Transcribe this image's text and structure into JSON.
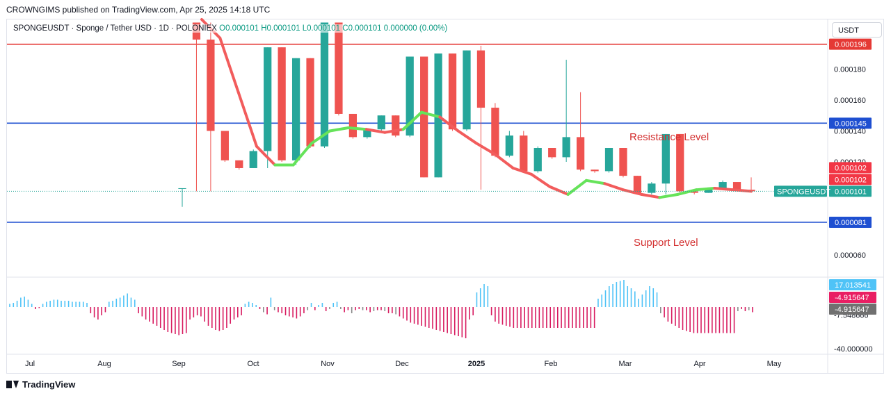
{
  "header": {
    "publisher": "CROWNGIMS published on TradingView.com, Apr 25, 2025 14:18 UTC"
  },
  "legend": {
    "symbol": "SPONGEUSDT · Sponge / Tether USD · 1D · POLONIEX",
    "ohlc": "O0.000101  H0.000101  L0.000101  C0.000101  0.000000 (0.00%)"
  },
  "currency": "USDT",
  "footer": {
    "brand": "TradingView"
  },
  "chart_data": {
    "type": "line",
    "colors": {
      "up": "#26a69a",
      "down": "#ef5350",
      "ma_up": "#66e35a",
      "ma_down": "#f25c5c",
      "resistance_top": "#e53935",
      "level": "#1e4fd1",
      "osc_up": "#4fc3f7",
      "osc_down": "#d81b60",
      "osc_neutral": "#8a8a8a"
    },
    "price_axis": {
      "ticks": [
        "0.000180",
        "0.000160",
        "0.000140",
        "0.000120",
        "0.000060"
      ],
      "tick_values": [
        0.00018,
        0.00016,
        0.00014,
        0.00012,
        6e-05
      ],
      "range": [
        4.6e-05,
        0.000212
      ]
    },
    "time_axis": [
      "Jul",
      "Aug",
      "Sep",
      "Oct",
      "Nov",
      "Dec",
      "2025",
      "Feb",
      "Mar",
      "Apr",
      "May"
    ],
    "levels": [
      {
        "value": 0.000196,
        "label": "0.000196",
        "color": "#e53935"
      },
      {
        "value": 0.000145,
        "label": "0.000145",
        "color": "#1e4fd1"
      },
      {
        "value": 8.1e-05,
        "label": "0.000081",
        "color": "#1e4fd1"
      }
    ],
    "annotations": {
      "resistance": "Resistance Level",
      "support": "Support Level"
    },
    "price_tags": [
      {
        "label": "0.000102",
        "color": "#f23645"
      },
      {
        "label": "0.000102",
        "color": "#f23645"
      },
      {
        "label": "0.000101",
        "color": "#26a69a",
        "symbol": "SPONGEUSDT"
      }
    ],
    "candles": [
      {
        "o": 0.000103,
        "h": 0.000103,
        "l": 9.1e-05,
        "c": 0.000103
      },
      {
        "o": 0.00021,
        "h": 0.00021,
        "l": 0.000101,
        "c": 0.000199
      },
      {
        "o": 0.000199,
        "h": 0.00021,
        "l": 0.000101,
        "c": 0.00014
      },
      {
        "o": 0.00014,
        "h": 0.00014,
        "l": 0.00012,
        "c": 0.000121
      },
      {
        "o": 0.000121,
        "h": 0.000121,
        "l": 0.000115,
        "c": 0.000116
      },
      {
        "o": 0.000116,
        "h": 0.000128,
        "l": 0.000116,
        "c": 0.000127
      },
      {
        "o": 0.000127,
        "h": 0.000194,
        "l": 0.000116,
        "c": 0.000194
      },
      {
        "o": 0.000194,
        "h": 0.000194,
        "l": 0.00012,
        "c": 0.000121
      },
      {
        "o": 0.000121,
        "h": 0.000187,
        "l": 0.000118,
        "c": 0.000187
      },
      {
        "o": 0.000187,
        "h": 0.000187,
        "l": 0.000129,
        "c": 0.00013
      },
      {
        "o": 0.00013,
        "h": 0.00021,
        "l": 0.000129,
        "c": 0.00021
      },
      {
        "o": 0.00021,
        "h": 0.00021,
        "l": 0.00015,
        "c": 0.000151
      },
      {
        "o": 0.000151,
        "h": 0.000151,
        "l": 0.000135,
        "c": 0.000136
      },
      {
        "o": 0.000136,
        "h": 0.000141,
        "l": 0.000135,
        "c": 0.000141
      },
      {
        "o": 0.000141,
        "h": 0.00015,
        "l": 0.000139,
        "c": 0.00015
      },
      {
        "o": 0.00015,
        "h": 0.00015,
        "l": 0.000136,
        "c": 0.000137
      },
      {
        "o": 0.000137,
        "h": 0.000188,
        "l": 0.000136,
        "c": 0.000188
      },
      {
        "o": 0.000188,
        "h": 0.000188,
        "l": 0.00011,
        "c": 0.00011
      },
      {
        "o": 0.00011,
        "h": 0.00019,
        "l": 0.00011,
        "c": 0.00019
      },
      {
        "o": 0.00019,
        "h": 0.00019,
        "l": 0.00014,
        "c": 0.000141
      },
      {
        "o": 0.000141,
        "h": 0.000192,
        "l": 0.00014,
        "c": 0.000192
      },
      {
        "o": 0.000192,
        "h": 0.000195,
        "l": 0.000102,
        "c": 0.000155
      },
      {
        "o": 0.000155,
        "h": 0.000158,
        "l": 0.000123,
        "c": 0.000124
      },
      {
        "o": 0.000124,
        "h": 0.00014,
        "l": 0.000123,
        "c": 0.000137
      },
      {
        "o": 0.000137,
        "h": 0.00014,
        "l": 0.000113,
        "c": 0.000114
      },
      {
        "o": 0.000114,
        "h": 0.00013,
        "l": 0.000113,
        "c": 0.000129
      },
      {
        "o": 0.000129,
        "h": 0.000129,
        "l": 0.000122,
        "c": 0.000123
      },
      {
        "o": 0.000123,
        "h": 0.000186,
        "l": 0.00012,
        "c": 0.000136
      },
      {
        "o": 0.000136,
        "h": 0.000165,
        "l": 0.000114,
        "c": 0.000115
      },
      {
        "o": 0.000115,
        "h": 0.000115,
        "l": 0.000113,
        "c": 0.000114
      },
      {
        "o": 0.000114,
        "h": 0.000129,
        "l": 0.000113,
        "c": 0.000129
      },
      {
        "o": 0.000129,
        "h": 0.000129,
        "l": 0.00011,
        "c": 0.000111
      },
      {
        "o": 0.000111,
        "h": 0.000111,
        "l": 9.9e-05,
        "c": 0.0001
      },
      {
        "o": 0.0001,
        "h": 0.000107,
        "l": 9.9e-05,
        "c": 0.000106
      },
      {
        "o": 0.000106,
        "h": 0.000138,
        "l": 9.9e-05,
        "c": 0.000138
      },
      {
        "o": 0.000138,
        "h": 0.000138,
        "l": 0.0001,
        "c": 0.000101
      },
      {
        "o": 0.000101,
        "h": 0.000101,
        "l": 9.9e-05,
        "c": 0.0001
      },
      {
        "o": 0.0001,
        "h": 0.000103,
        "l": 0.0001,
        "c": 0.000103
      },
      {
        "o": 0.000103,
        "h": 0.000108,
        "l": 0.000102,
        "c": 0.000107
      },
      {
        "o": 0.000107,
        "h": 0.000107,
        "l": 0.000101,
        "c": 0.000102
      },
      {
        "o": 0.000102,
        "h": 0.00011,
        "l": 0.000101,
        "c": 0.000101
      }
    ],
    "ma": [
      {
        "v": 0.000222,
        "t": "down"
      },
      {
        "v": 0.0002,
        "t": "down"
      },
      {
        "v": 0.000165,
        "t": "down"
      },
      {
        "v": 0.00013,
        "t": "down"
      },
      {
        "v": 0.000118,
        "t": "up"
      },
      {
        "v": 0.000118,
        "t": "up"
      },
      {
        "v": 0.000132,
        "t": "up"
      },
      {
        "v": 0.00014,
        "t": "up"
      },
      {
        "v": 0.000142,
        "t": "up"
      },
      {
        "v": 0.000141,
        "t": "down"
      },
      {
        "v": 0.000139,
        "t": "down"
      },
      {
        "v": 0.000141,
        "t": "up"
      },
      {
        "v": 0.000152,
        "t": "up"
      },
      {
        "v": 0.000149,
        "t": "down"
      },
      {
        "v": 0.00014,
        "t": "down"
      },
      {
        "v": 0.000132,
        "t": "down"
      },
      {
        "v": 0.000125,
        "t": "down"
      },
      {
        "v": 0.000116,
        "t": "down"
      },
      {
        "v": 0.000112,
        "t": "down"
      },
      {
        "v": 0.000104,
        "t": "down"
      },
      {
        "v": 9.9e-05,
        "t": "up"
      },
      {
        "v": 0.000108,
        "t": "up"
      },
      {
        "v": 0.000106,
        "t": "down"
      },
      {
        "v": 0.000102,
        "t": "down"
      },
      {
        "v": 9.9e-05,
        "t": "down"
      },
      {
        "v": 9.7e-05,
        "t": "up"
      },
      {
        "v": 9.9e-05,
        "t": "up"
      },
      {
        "v": 0.000102,
        "t": "up"
      },
      {
        "v": 0.000103,
        "t": "down"
      },
      {
        "v": 0.000102,
        "t": "down"
      },
      {
        "v": 0.000101,
        "t": "down"
      }
    ],
    "oscillator": {
      "ticks": [
        "-7.548666",
        "-40.000000"
      ],
      "tick_values": [
        -7.548666,
        -40.0
      ],
      "range": [
        -44,
        28
      ],
      "value_tags": [
        {
          "label": "17.013541",
          "color": "#4fc3f7"
        },
        {
          "label": "-4.915647",
          "color": "#e91e63"
        },
        {
          "label": "-4.915647",
          "color": "#707070"
        }
      ],
      "values": [
        3,
        4,
        6,
        9,
        10,
        7,
        3,
        -2,
        -1,
        3,
        5,
        6,
        7,
        7,
        6,
        6,
        6,
        5,
        5,
        5,
        5,
        4,
        -6,
        -10,
        -12,
        -8,
        -5,
        5,
        6,
        8,
        9,
        11,
        13,
        9,
        7,
        -6,
        -9,
        -12,
        -14,
        -16,
        -18,
        -20,
        -22,
        -24,
        -25,
        -26,
        -27,
        -26,
        -25,
        -12,
        -10,
        -8,
        -9,
        -14,
        -18,
        -20,
        -22,
        -23,
        -22,
        -20,
        -16,
        -12,
        -10,
        -8,
        3,
        5,
        4,
        2,
        -2,
        -5,
        -7,
        9,
        -3,
        -5,
        -6,
        -8,
        -9,
        -10,
        -11,
        -9,
        -6,
        -3,
        4,
        -3,
        2,
        4,
        -4,
        -2,
        4,
        5,
        -2,
        -5,
        -3,
        -6,
        -3,
        -2,
        -3,
        -3,
        -5,
        -4,
        -3,
        -3,
        -4,
        -6,
        -6,
        -7,
        -9,
        -11,
        -13,
        -15,
        -16,
        -17,
        -18,
        -19,
        -20,
        -21,
        -22,
        -23,
        -24,
        -25,
        -26,
        -27,
        -28,
        -29,
        -30,
        -12,
        -8,
        14,
        18,
        22,
        20,
        -8,
        -14,
        -16,
        -17,
        -18,
        -19,
        -20,
        -20,
        -20,
        -20,
        -20,
        -20,
        -20,
        -20,
        -20,
        -20,
        -20,
        -20,
        -20,
        -20,
        -20,
        -20,
        -20,
        -20,
        -20,
        -20,
        -20,
        -20,
        -20,
        8,
        12,
        16,
        20,
        22,
        24,
        25,
        26,
        20,
        18,
        15,
        8,
        12,
        16,
        20,
        18,
        14,
        -6,
        -10,
        -14,
        -16,
        -18,
        -20,
        -22,
        -23,
        -24,
        -25,
        -25,
        -25,
        -25,
        -25,
        -25,
        -25,
        -25,
        -25,
        -25,
        -25,
        -25,
        -4,
        -2,
        -4,
        -3,
        -5
      ]
    }
  }
}
